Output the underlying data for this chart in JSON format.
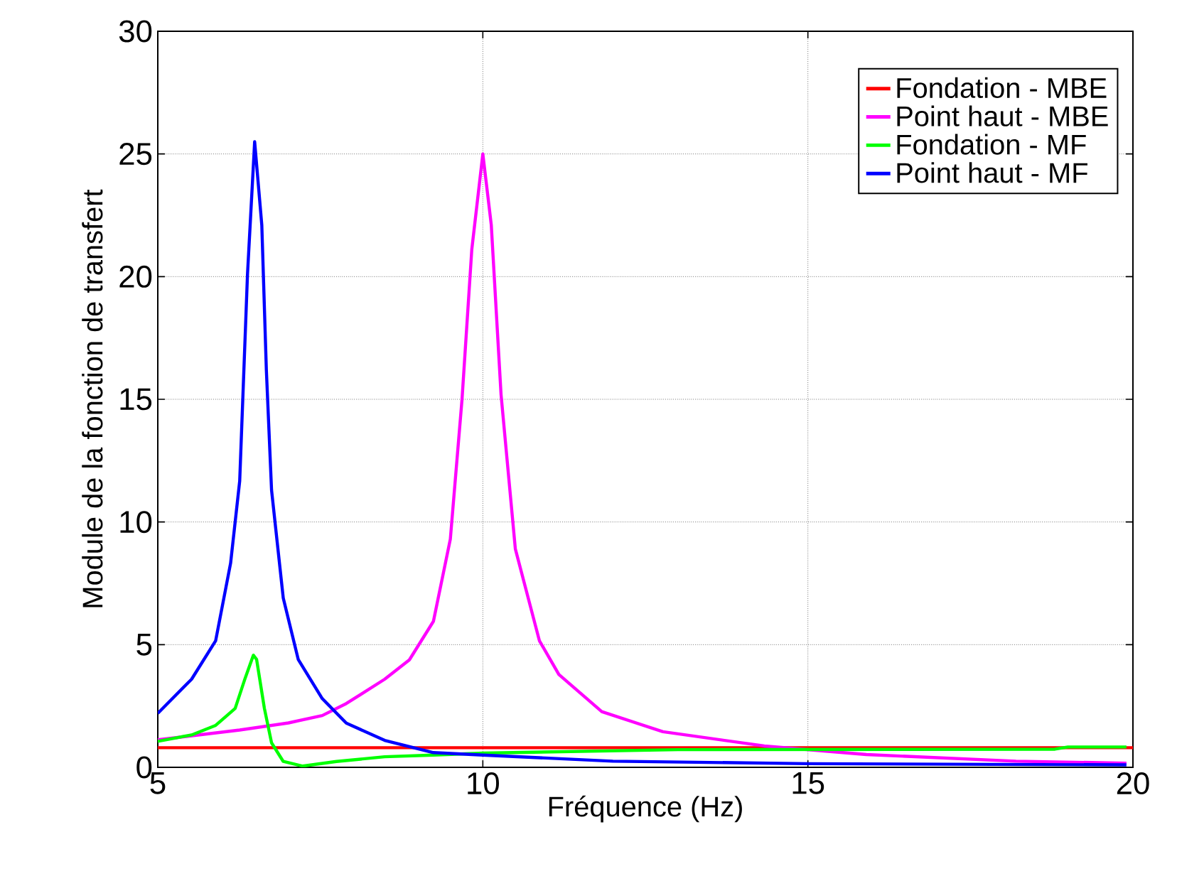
{
  "chart_data": {
    "type": "line",
    "xlabel": "Fréquence (Hz)",
    "ylabel": "Module de la fonction de transfert",
    "xlim": [
      5,
      20
    ],
    "ylim": [
      0,
      30
    ],
    "xticks": [
      5,
      10,
      15,
      20
    ],
    "yticks": [
      0,
      5,
      10,
      15,
      20,
      25,
      30
    ],
    "grid": true,
    "legend": "top right",
    "line_style": "solid",
    "marker": "none",
    "series": [
      {
        "name": "Fondation - MBE",
        "color": "#ff0000",
        "x": [
          5,
          20
        ],
        "values": [
          0.8,
          0.8
        ]
      },
      {
        "name": "Point haut - MBE",
        "color": "#ff00ff",
        "x": [
          5,
          6.26,
          7.01,
          7.53,
          7.9,
          8.49,
          8.87,
          9.24,
          9.5,
          9.68,
          9.83,
          10.0,
          10.13,
          10.28,
          10.5,
          10.87,
          11.17,
          11.83,
          12.77,
          14.33,
          15.9,
          18.2,
          19.9
        ],
        "values": [
          1.12,
          1.52,
          1.81,
          2.11,
          2.6,
          3.59,
          4.38,
          5.95,
          9.3,
          15.0,
          21.1,
          25.0,
          22.1,
          15.2,
          8.9,
          5.16,
          3.78,
          2.27,
          1.45,
          0.87,
          0.52,
          0.25,
          0.17
        ]
      },
      {
        "name": "Fondation - MF",
        "color": "#00ff00",
        "x": [
          5,
          5.52,
          5.89,
          6.19,
          6.34,
          6.47,
          6.52,
          6.64,
          6.75,
          6.93,
          7.23,
          7.75,
          8.49,
          9.24,
          10,
          13.0,
          18.8,
          19.0,
          19.9
        ],
        "values": [
          1.06,
          1.32,
          1.71,
          2.4,
          3.6,
          4.57,
          4.4,
          2.4,
          1.0,
          0.24,
          0.05,
          0.24,
          0.43,
          0.5,
          0.58,
          0.72,
          0.74,
          0.83,
          0.83
        ]
      },
      {
        "name": "Point haut - MF",
        "color": "#0000ff",
        "x": [
          5,
          5.52,
          5.89,
          6.12,
          6.26,
          6.38,
          6.49,
          6.6,
          6.67,
          6.75,
          6.93,
          7.16,
          7.53,
          7.9,
          8.49,
          9.24,
          10,
          12,
          15,
          19.9
        ],
        "values": [
          2.2,
          3.59,
          5.16,
          8.32,
          11.67,
          20.1,
          25.5,
          22.1,
          16.2,
          11.3,
          6.9,
          4.4,
          2.8,
          1.8,
          1.1,
          0.6,
          0.5,
          0.25,
          0.15,
          0.1
        ]
      }
    ]
  }
}
